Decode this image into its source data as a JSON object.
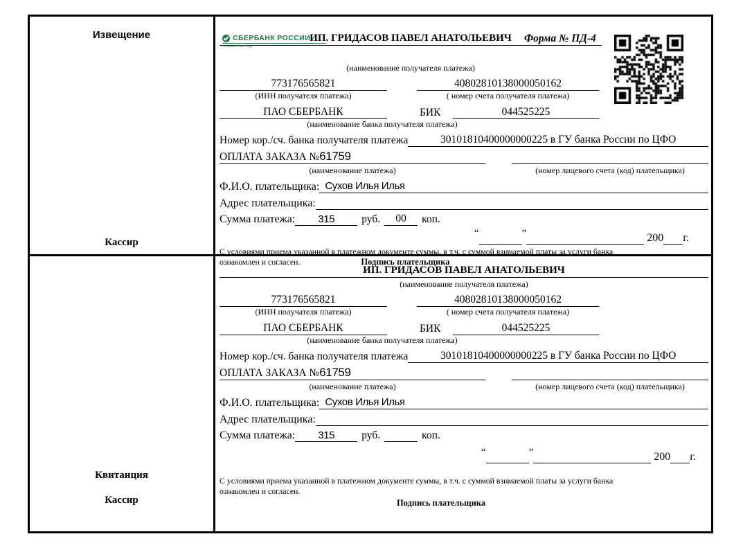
{
  "form_title": "Форма № ПД-4",
  "logo": {
    "bank_name": "СБЕРБАНК РОССИИ",
    "tagline": "Основан в 1841 году"
  },
  "stubs": {
    "notice": "Извещение",
    "receipt": "Квитанция",
    "cashier": "Кассир"
  },
  "labels": {
    "recipient_caption": "(наименование получателя платежа)",
    "inn_caption": "(ИНН получателя платежа)",
    "account_caption": "( номер счета получателя платежа)",
    "bik": "БИК",
    "bank_caption": "(наименование банка получателя платежа)",
    "korr_label": "Номер кор./сч. банка получателя платежа",
    "payment_caption": "(наименование платежа)",
    "personal_account_caption": "(номер лицевого счета (код) плательщика)",
    "fio_label": "Ф.И.О. плательщика:",
    "address_label": "Адрес плательщика:",
    "sum_label": "Сумма платежа:",
    "rub": "руб.",
    "kop": "коп.",
    "open_quote": "“",
    "close_quote": "”",
    "year_prefix": "200",
    "year_suffix": "г.",
    "terms_line1": "С условиями приема указанной в платежном документе суммы, в т.ч. с суммой взимаемой платы за услуги банка",
    "terms_line2": "ознакомлен и согласен.",
    "signature": "Подпись плательщика"
  },
  "payment": {
    "recipient": "ИП. ГРИДАСОВ ПАВЕЛ АНАТОЛЬЕВИЧ",
    "inn": "773176565821",
    "account": "40802810138000050162",
    "bank": "ПАО СБЕРБАНК",
    "bik_value": "044525225",
    "korr_value": "30101810400000000225 в ГУ банка России по ЦФО",
    "payment_name": "ОПЛАТА ЗАКАЗА №",
    "order_number": "61759",
    "payer_name": "Сухов Илья Илья",
    "amount_rub": "315",
    "amount_kop_notice": "00",
    "amount_kop_receipt": ""
  },
  "colors": {
    "sberbank_green": "#1b7a43",
    "ink": "#000000"
  }
}
